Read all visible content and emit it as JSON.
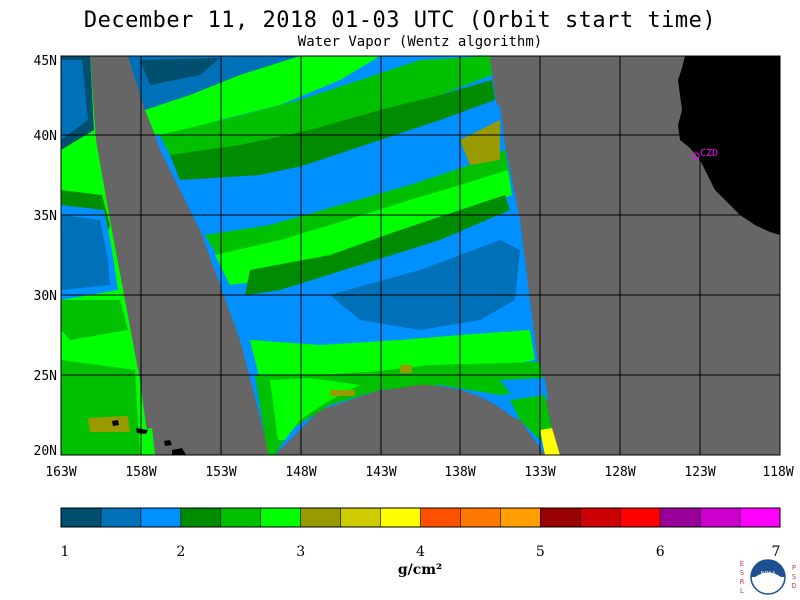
{
  "title": "December 11, 2018  01-03 UTC  (Orbit start time)",
  "subtitle": "Water Vapor (Wentz algorithm)",
  "map": {
    "lat_labels": [
      "45N",
      "40N",
      "35N",
      "30N",
      "25N",
      "20N"
    ],
    "lon_labels": [
      "163W",
      "158W",
      "153W",
      "148W",
      "143W",
      "138W",
      "133W",
      "128W",
      "123W",
      "118W"
    ],
    "station_label": "CZD",
    "colors": {
      "no_data": "#666666",
      "land": "#000000",
      "station": "#ff00ff",
      "grid": "#000000"
    }
  },
  "colorbar": {
    "ticks": [
      "1",
      "2",
      "3",
      "4",
      "5",
      "6",
      "7"
    ],
    "unit_label": "g/cm²",
    "colors": [
      "#004f6e",
      "#0070b8",
      "#0090ff",
      "#008c00",
      "#00c000",
      "#00ff00",
      "#999900",
      "#cccc00",
      "#ffff00",
      "#ff5000",
      "#ff7800",
      "#ffa000",
      "#990000",
      "#cc0000",
      "#ff0000",
      "#990099",
      "#cc00cc",
      "#ff00ff"
    ]
  },
  "logo": {
    "left_letters": "ESRL",
    "right_letters": "PSD",
    "center_text": "NOAA"
  }
}
